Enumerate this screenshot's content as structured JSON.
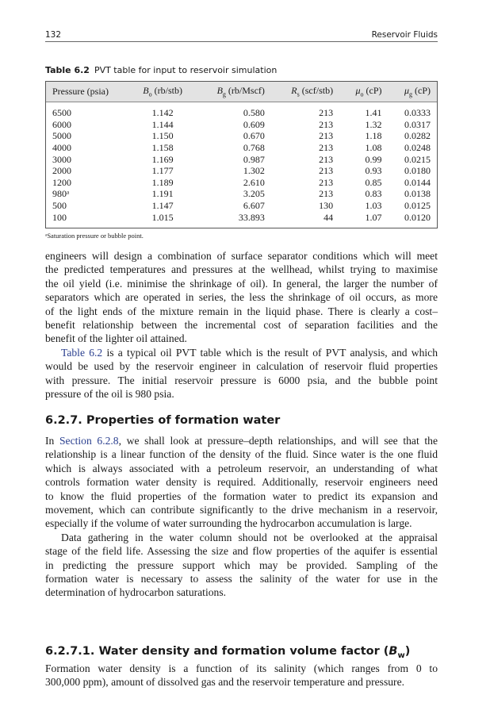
{
  "header": {
    "page_number": "132",
    "running_title": "Reservoir Fluids"
  },
  "table": {
    "label": "Table 6.2",
    "title": "PVT table for input to reservoir simulation",
    "columns": [
      {
        "sym": "Pressure (psia)",
        "sub": "",
        "unit": ""
      },
      {
        "sym": "B",
        "sub": "o",
        "unit": " (rb/stb)"
      },
      {
        "sym": "B",
        "sub": "g",
        "unit": " (rb/Mscf)"
      },
      {
        "sym": "R",
        "sub": "s",
        "unit": " (scf/stb)"
      },
      {
        "sym": "μ",
        "sub": "o",
        "unit": " (cP)"
      },
      {
        "sym": "μ",
        "sub": "g",
        "unit": " (cP)"
      }
    ],
    "rows": [
      [
        "6500",
        "1.142",
        "0.580",
        "213",
        "1.41",
        "0.0333"
      ],
      [
        "6000",
        "1.144",
        "0.609",
        "213",
        "1.32",
        "0.0317"
      ],
      [
        "5000",
        "1.150",
        "0.670",
        "213",
        "1.18",
        "0.0282"
      ],
      [
        "4000",
        "1.158",
        "0.768",
        "213",
        "1.08",
        "0.0248"
      ],
      [
        "3000",
        "1.169",
        "0.987",
        "213",
        "0.99",
        "0.0215"
      ],
      [
        "2000",
        "1.177",
        "1.302",
        "213",
        "0.93",
        "0.0180"
      ],
      [
        "1200",
        "1.189",
        "2.610",
        "213",
        "0.85",
        "0.0144"
      ],
      [
        "980ᵃ",
        "1.191",
        "3.205",
        "213",
        "0.83",
        "0.0138"
      ],
      [
        "500",
        "1.147",
        "6.607",
        "130",
        "1.03",
        "0.0125"
      ],
      [
        "100",
        "1.015",
        "33.893",
        "44",
        "1.07",
        "0.0120"
      ]
    ],
    "footnote": "ᵃSaturation pressure or bubble point."
  },
  "section1": {
    "paragraphs": [
      {
        "indent": false,
        "lines": [
          {
            "t": "engineers will design a combination of surface separator conditions which will meet"
          },
          {
            "t": "the predicted temperatures and pressures at the wellhead, whilst trying to maximise"
          },
          {
            "t": "the oil yield (i.e. minimise the shrinkage of oil). In general, the larger the number of"
          },
          {
            "t": "separators which are operated in series, the less the shrinkage of oil occurs, as more"
          },
          {
            "t": "of the light ends of the mixture remain in the liquid phase. There is clearly a cost–"
          },
          {
            "t": "benefit relationship between the incremental cost of separation facilities and the"
          },
          {
            "t": "benefit of the lighter oil attained."
          }
        ]
      },
      {
        "indent": true,
        "lines": [
          {
            "link": "Table 6.2",
            "t": " is a typical oil PVT table which is the result of PVT analysis, and which"
          },
          {
            "t": "would be used by the reservoir engineer in calculation of reservoir fluid properties"
          },
          {
            "t": "with pressure. The initial reservoir pressure is 6000 psia, and the bubble point"
          },
          {
            "t": "pressure of the oil is 980 psia."
          }
        ]
      }
    ]
  },
  "heading1": "6.2.7. Properties of formation water",
  "section2": {
    "paragraphs": [
      {
        "indent": false,
        "lines": [
          {
            "pre": "In ",
            "link": "Section 6.2.8",
            "t": ", we shall look at pressure–depth relationships, and will see that the"
          },
          {
            "t": "relationship is a linear function of the density of the fluid. Since water is the one fluid"
          },
          {
            "t": "which is always associated with a petroleum reservoir, an understanding of what"
          },
          {
            "t": "controls formation water density is required. Additionally, reservoir engineers need"
          },
          {
            "t": "to know the fluid properties of the formation water to predict its expansion and"
          },
          {
            "t": "movement, which can contribute significantly to the drive mechanism in a reservoir,"
          },
          {
            "t": "especially if the volume of water surrounding the hydrocarbon accumulation is large."
          }
        ]
      },
      {
        "indent": true,
        "lines": [
          {
            "t": "Data gathering in the water column should not be overlooked at the appraisal"
          },
          {
            "t": "stage of the field life. Assessing the size and flow properties of the aquifer is essential"
          },
          {
            "t": "in predicting the pressure support which may be provided. Sampling of the"
          },
          {
            "t": "formation water is necessary to assess the salinity of the water for use in the"
          },
          {
            "t": "determination of hydrocarbon saturations."
          }
        ]
      }
    ]
  },
  "heading2": {
    "text": "6.2.7.1. Water density and formation volume factor (",
    "sym": "B",
    "sub": "w",
    "close": ")"
  },
  "section3": {
    "paragraphs": [
      {
        "indent": false,
        "lines": [
          {
            "t": "Formation water density is a function of its salinity (which ranges from 0 to"
          },
          {
            "t": "300,000 ppm), amount of dissolved gas and the reservoir temperature and pressure."
          }
        ]
      }
    ]
  }
}
